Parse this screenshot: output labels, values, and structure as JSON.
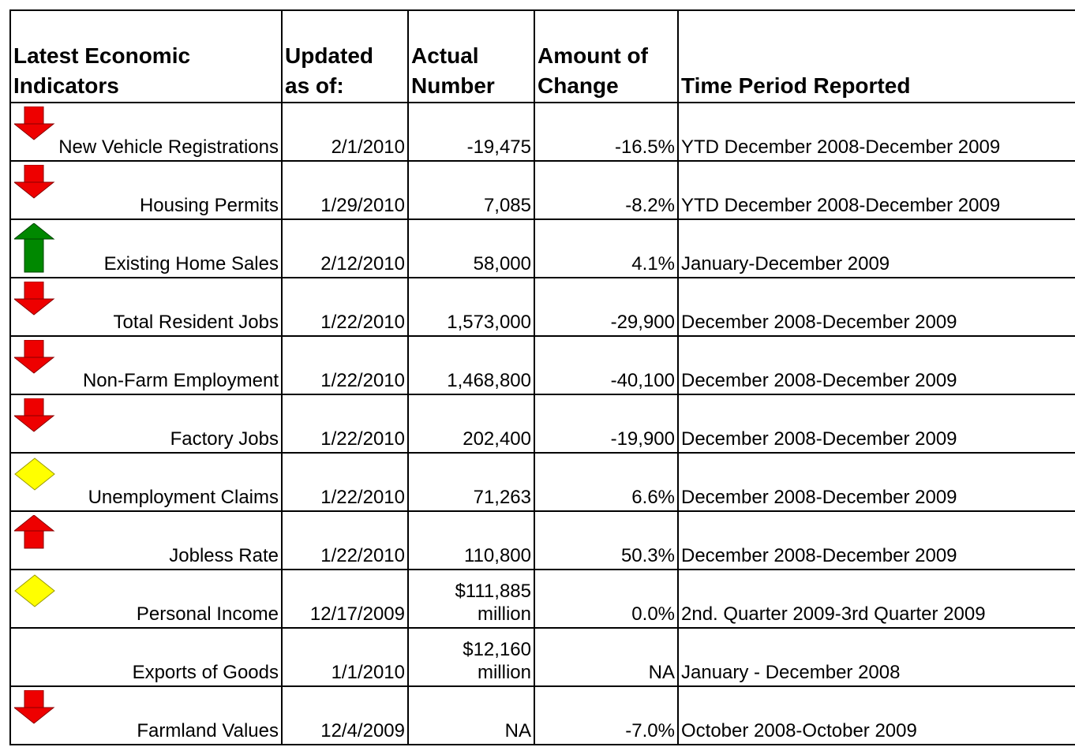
{
  "table": {
    "header": [
      "Latest Economic\nIndicators",
      "Updated\nas of:",
      "Actual\nNumber",
      "Amount of\nChange",
      "Time Period Reported"
    ],
    "rows": [
      [
        "New Vehicle Registrations",
        "2/1/2010",
        "-19,475",
        "-16.5%",
        "YTD December 2008-December 2009"
      ],
      [
        "Housing Permits",
        "1/29/2010",
        "7,085",
        "-8.2%",
        "YTD December 2008-December 2009"
      ],
      [
        "Existing Home Sales",
        "2/12/2010",
        "58,000",
        "4.1%",
        "January-December 2009"
      ],
      [
        "Total Resident Jobs",
        "1/22/2010",
        "1,573,000",
        "-29,900",
        "December 2008-December 2009"
      ],
      [
        "Non-Farm Employment",
        "1/22/2010",
        "1,468,800",
        "-40,100",
        "December 2008-December 2009"
      ],
      [
        "Factory Jobs",
        "1/22/2010",
        "202,400",
        "-19,900",
        "December 2008-December 2009"
      ],
      [
        "Unemployment Claims",
        "1/22/2010",
        "71,263",
        "6.6%",
        "December 2008-December 2009"
      ],
      [
        "Jobless Rate",
        "1/22/2010",
        "110,800",
        "50.3%",
        "December 2008-December 2009"
      ],
      [
        "Personal Income",
        "12/17/2009",
        "$111,885\nmillion",
        "0.0%",
        "2nd. Quarter 2009-3rd Quarter 2009"
      ],
      [
        "Exports of Goods",
        "1/1/2010",
        "$12,160\nmillion",
        "NA",
        "January - December 2008"
      ],
      [
        "Farmland Values",
        "12/4/2009",
        "NA",
        "-7.0%",
        "October 2008-October 2009"
      ]
    ]
  }
}
